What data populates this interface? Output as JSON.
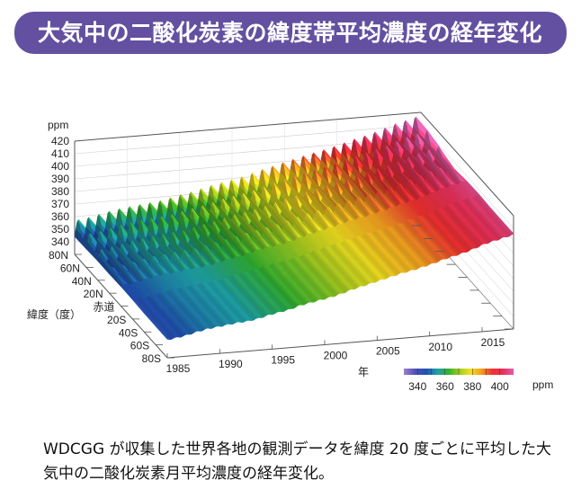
{
  "title": "大気中の二酸化炭素の緯度帯平均濃度の経年変化",
  "caption": "WDCGG が収集した世界各地の観測データを緯度 20 度ごとに平均した大気中の二酸化炭素月平均濃度の経年変化。",
  "chart_data": {
    "type": "surface3d",
    "zlabel": "ppm",
    "xlabel": "年",
    "ylabel": "緯度（度）",
    "zlim": [
      340,
      420
    ],
    "z_ticks": [
      "340",
      "350",
      "360",
      "370",
      "380",
      "390",
      "400",
      "410",
      "420"
    ],
    "xlim": [
      1985,
      2018
    ],
    "x_ticks": [
      "1985",
      "1990",
      "1995",
      "2000",
      "2005",
      "2010",
      "2015"
    ],
    "lat_ticks": [
      "80N",
      "60N",
      "40N",
      "20N",
      "赤道",
      "20S",
      "40S",
      "60S",
      "80S"
    ],
    "years": [
      1985,
      1986,
      1987,
      1988,
      1989,
      1990,
      1991,
      1992,
      1993,
      1994,
      1995,
      1996,
      1997,
      1998,
      1999,
      2000,
      2001,
      2002,
      2003,
      2004,
      2005,
      2006,
      2007,
      2008,
      2009,
      2010,
      2011,
      2012,
      2013,
      2014,
      2015,
      2016,
      2017,
      2018
    ],
    "annual_mean_ppm": [
      346,
      347,
      348.5,
      350.5,
      352,
      353,
      354,
      355,
      355.5,
      357,
      359,
      360.5,
      362,
      364.5,
      366,
      367.5,
      369,
      371,
      373.5,
      375.5,
      377.5,
      379.5,
      381.5,
      383.5,
      385,
      387,
      389,
      391.5,
      393.5,
      395.5,
      398,
      401,
      403,
      405
    ],
    "latitude_offset_ppm": [
      3,
      3,
      2.5,
      1,
      0,
      -1,
      -1.5,
      -1.5,
      -1.5
    ],
    "seasonal_amplitude_ppm": [
      8,
      7.5,
      5.5,
      3,
      1.5,
      0.6,
      0.5,
      0.5,
      0.5
    ],
    "colorbar": {
      "label": "ppm",
      "range": [
        330,
        410
      ],
      "ticks": [
        "340",
        "360",
        "380",
        "400"
      ],
      "colors": [
        "#9b7fc8",
        "#5050b8",
        "#2050b0",
        "#1ea0a8",
        "#30b030",
        "#a0cc20",
        "#f0e020",
        "#f5a020",
        "#f03030",
        "#e8305a",
        "#e060b0"
      ]
    },
    "grid": true
  }
}
